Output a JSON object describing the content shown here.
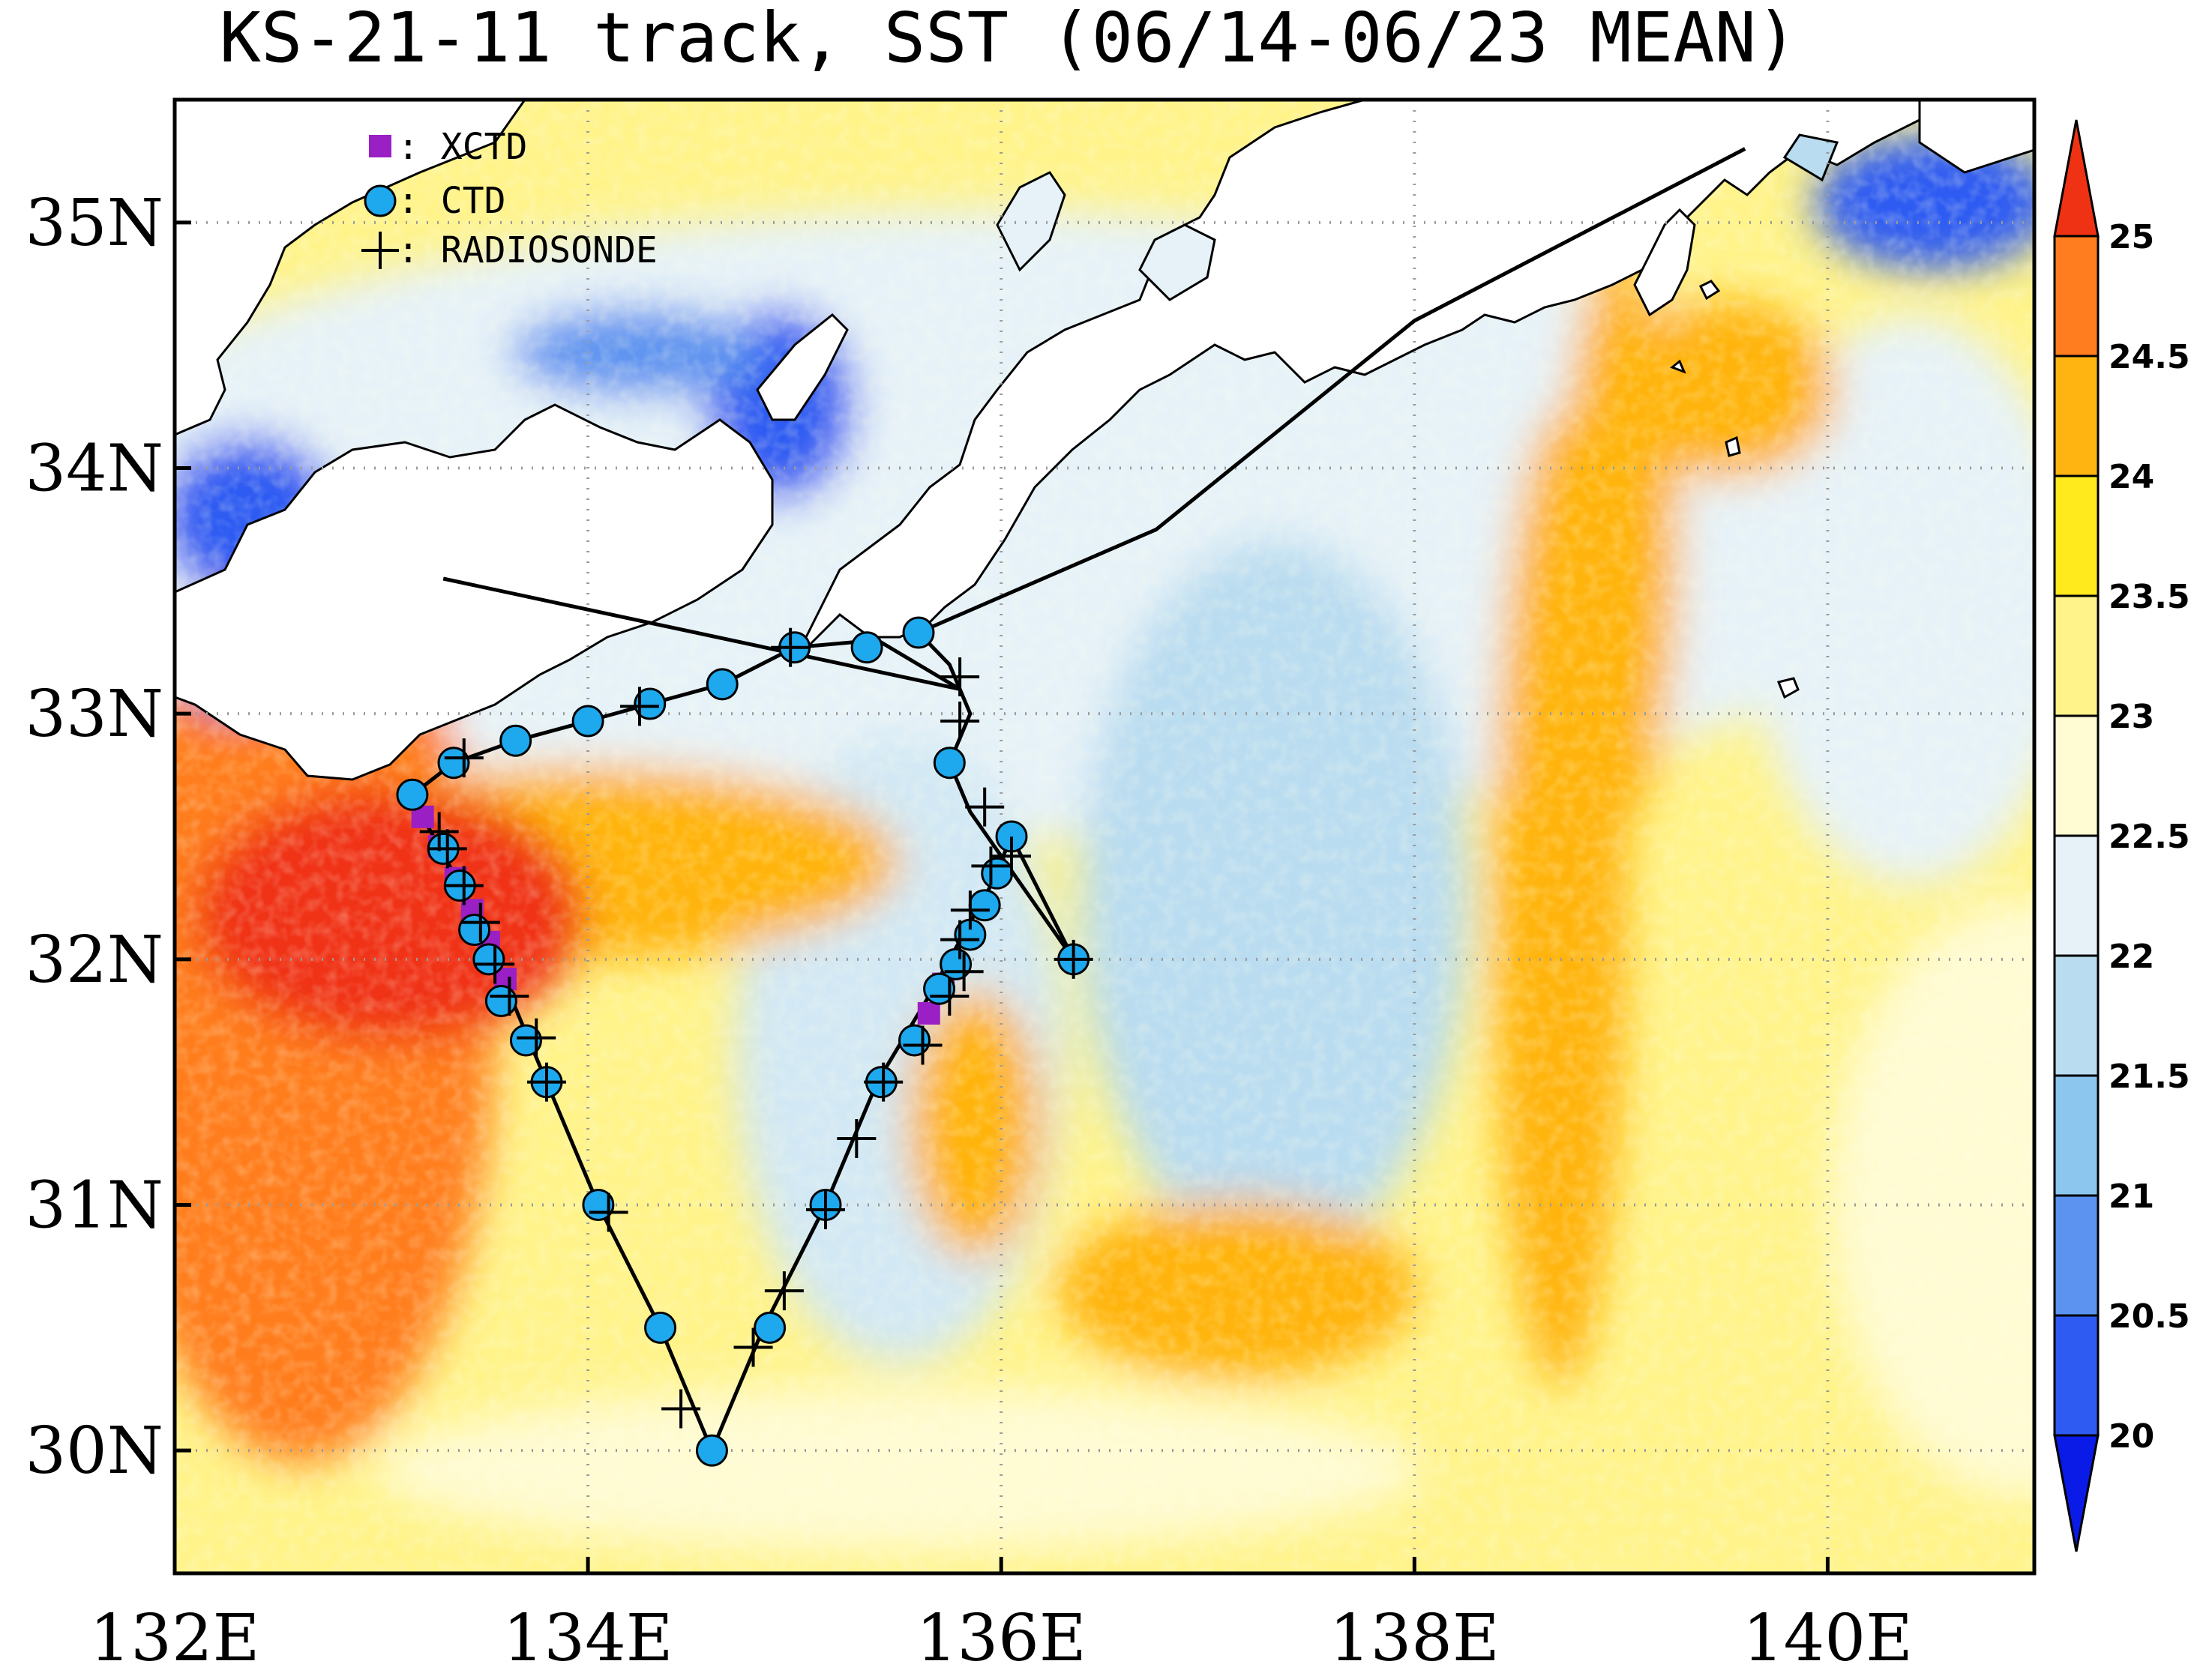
{
  "title": "KS-21-11 track, SST (06/14-06/23 MEAN)",
  "map": {
    "lon_range": [
      132,
      141
    ],
    "lat_range": [
      29.5,
      35.5
    ],
    "x_ticks": [
      {
        "lon": 132,
        "label": "132E"
      },
      {
        "lon": 134,
        "label": "134E"
      },
      {
        "lon": 136,
        "label": "136E"
      },
      {
        "lon": 138,
        "label": "138E"
      },
      {
        "lon": 140,
        "label": "140E"
      }
    ],
    "y_ticks": [
      {
        "lat": 30,
        "label": "30N"
      },
      {
        "lat": 31,
        "label": "31N"
      },
      {
        "lat": 32,
        "label": "32N"
      },
      {
        "lat": 33,
        "label": "33N"
      },
      {
        "lat": 34,
        "label": "34N"
      },
      {
        "lat": 35,
        "label": "35N"
      }
    ],
    "grid": "dotted gray",
    "land_color": "#ffffff"
  },
  "legend": {
    "items": [
      {
        "symbol": "square",
        "color": "#9a1fc4",
        "label": ": XCTD"
      },
      {
        "symbol": "circle",
        "color": "#1ea8ee",
        "label": ": CTD"
      },
      {
        "symbol": "plus",
        "color": "#000000",
        "label": ": RADIOSONDE"
      }
    ]
  },
  "colorbar": {
    "labels": [
      "20",
      "20.5",
      "21",
      "21.5",
      "22",
      "22.5",
      "23",
      "23.5",
      "24",
      "24.5",
      "25"
    ],
    "colors": [
      "#0a1be8",
      "#2e5bf2",
      "#5c93f0",
      "#8cc6ee",
      "#b9dcf0",
      "#e6f2f8",
      "#fffbd2",
      "#fff38a",
      "#ffea1e",
      "#ffb411",
      "#ff7d1e",
      "#f03214"
    ]
  },
  "track": {
    "line_color": "#000000",
    "route": [
      [
        133.3,
        33.55
      ],
      [
        135.8,
        33.1
      ],
      [
        135.4,
        33.3
      ],
      [
        135.0,
        33.27
      ],
      [
        134.65,
        33.12
      ],
      [
        134.3,
        33.04
      ],
      [
        134.0,
        32.97
      ],
      [
        133.65,
        32.89
      ],
      [
        133.35,
        32.8
      ],
      [
        133.15,
        32.67
      ],
      [
        133.2,
        32.58
      ],
      [
        133.35,
        32.35
      ],
      [
        133.55,
        32.0
      ],
      [
        133.7,
        31.7
      ],
      [
        133.8,
        31.5
      ],
      [
        134.05,
        31.0
      ],
      [
        134.35,
        30.5
      ],
      [
        134.6,
        30.0
      ],
      [
        134.85,
        30.5
      ],
      [
        135.15,
        31.0
      ],
      [
        135.4,
        31.5
      ],
      [
        135.65,
        31.85
      ],
      [
        135.95,
        32.3
      ],
      [
        136.05,
        32.5
      ],
      [
        136.35,
        32.0
      ],
      [
        135.85,
        32.6
      ],
      [
        135.75,
        32.8
      ],
      [
        135.85,
        33.0
      ],
      [
        135.75,
        33.2
      ],
      [
        135.6,
        33.33
      ],
      [
        136.75,
        33.75
      ],
      [
        138.0,
        34.6
      ],
      [
        139.6,
        35.3
      ]
    ],
    "xctd": [
      [
        133.2,
        32.58
      ],
      [
        133.28,
        32.46
      ],
      [
        133.36,
        32.33
      ],
      [
        133.44,
        32.2
      ],
      [
        133.52,
        32.07
      ],
      [
        133.6,
        31.92
      ],
      [
        135.65,
        31.78
      ],
      [
        135.72,
        31.9
      ]
    ],
    "ctd": [
      [
        133.15,
        32.67
      ],
      [
        133.35,
        32.8
      ],
      [
        133.65,
        32.89
      ],
      [
        134.0,
        32.97
      ],
      [
        134.3,
        33.04
      ],
      [
        134.65,
        33.12
      ],
      [
        135.0,
        33.27
      ],
      [
        135.35,
        33.27
      ],
      [
        135.6,
        33.33
      ],
      [
        135.75,
        32.8
      ],
      [
        136.05,
        32.5
      ],
      [
        135.98,
        32.35
      ],
      [
        135.92,
        32.22
      ],
      [
        135.85,
        32.1
      ],
      [
        135.78,
        31.98
      ],
      [
        135.7,
        31.88
      ],
      [
        135.58,
        31.67
      ],
      [
        135.42,
        31.5
      ],
      [
        135.15,
        31.0
      ],
      [
        134.88,
        30.5
      ],
      [
        134.6,
        30.0
      ],
      [
        134.35,
        30.5
      ],
      [
        134.05,
        31.0
      ],
      [
        133.8,
        31.5
      ],
      [
        133.7,
        31.67
      ],
      [
        133.58,
        31.83
      ],
      [
        133.52,
        32.0
      ],
      [
        133.45,
        32.12
      ],
      [
        133.38,
        32.3
      ],
      [
        133.3,
        32.45
      ],
      [
        136.35,
        32.0
      ]
    ],
    "radiosonde": [
      [
        133.4,
        32.82
      ],
      [
        134.25,
        33.03
      ],
      [
        134.98,
        33.27
      ],
      [
        135.8,
        33.15
      ],
      [
        135.8,
        32.97
      ],
      [
        135.92,
        32.62
      ],
      [
        136.05,
        32.42
      ],
      [
        135.95,
        32.38
      ],
      [
        135.85,
        32.2
      ],
      [
        135.8,
        32.08
      ],
      [
        135.82,
        31.95
      ],
      [
        135.75,
        31.85
      ],
      [
        135.62,
        31.65
      ],
      [
        135.43,
        31.5
      ],
      [
        135.3,
        31.27
      ],
      [
        135.15,
        30.98
      ],
      [
        134.95,
        30.65
      ],
      [
        134.8,
        30.42
      ],
      [
        134.45,
        30.17
      ],
      [
        134.1,
        30.97
      ],
      [
        133.8,
        31.5
      ],
      [
        133.75,
        31.68
      ],
      [
        133.62,
        31.85
      ],
      [
        133.55,
        31.98
      ],
      [
        133.48,
        32.15
      ],
      [
        133.4,
        32.3
      ],
      [
        133.32,
        32.45
      ],
      [
        133.28,
        32.52
      ],
      [
        136.35,
        32.0
      ]
    ]
  }
}
